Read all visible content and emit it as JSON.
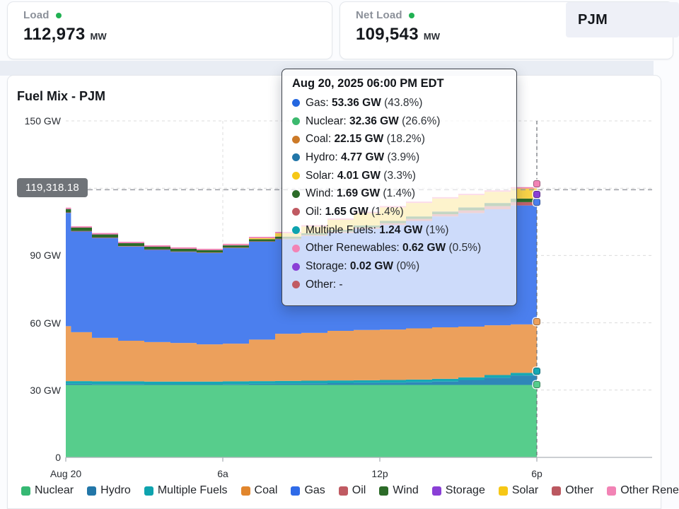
{
  "cards": {
    "load": {
      "title": "Load",
      "value": "112,973",
      "unit": "MW"
    },
    "net_load": {
      "title": "Net Load",
      "value": "109,543",
      "unit": "MW"
    }
  },
  "region_selector": {
    "label": "PJM"
  },
  "chart": {
    "title": "Fuel Mix - PJM",
    "reference_badge": "119,318.18",
    "y_ticks": [
      {
        "label": "150 GW",
        "gw": 150
      },
      {
        "label": "90 GW",
        "gw": 90
      },
      {
        "label": "60 GW",
        "gw": 60
      },
      {
        "label": "30 GW",
        "gw": 30
      },
      {
        "label": "0",
        "gw": 0
      }
    ],
    "hidden_y_tick_gw": 120,
    "x_ticks": [
      {
        "label": "Aug 20",
        "hour": 0
      },
      {
        "label": "6a",
        "hour": 6
      },
      {
        "label": "12p",
        "hour": 12
      },
      {
        "label": "6p",
        "hour": 18
      }
    ],
    "reference_line_gw": 119.318
  },
  "tooltip": {
    "title": "Aug 20, 2025 06:00 PM EDT",
    "rows": [
      {
        "color": "#2467e0",
        "label": "Gas",
        "value": "53.36 GW",
        "pct": "43.8%"
      },
      {
        "color": "#3cb96e",
        "label": "Nuclear",
        "value": "32.36 GW",
        "pct": "26.6%"
      },
      {
        "color": "#cc7a28",
        "label": "Coal",
        "value": "22.15 GW",
        "pct": "18.2%"
      },
      {
        "color": "#2276a8",
        "label": "Hydro",
        "value": "4.77 GW",
        "pct": "3.9%"
      },
      {
        "color": "#f6c716",
        "label": "Solar",
        "value": "4.01 GW",
        "pct": "3.3%"
      },
      {
        "color": "#2c6b28",
        "label": "Wind",
        "value": "1.69 GW",
        "pct": "1.4%"
      },
      {
        "color": "#c05a62",
        "label": "Oil",
        "value": "1.65 GW",
        "pct": "1.4%"
      },
      {
        "color": "#0ea3ae",
        "label": "Multiple Fuels",
        "value": "1.24 GW",
        "pct": "1%"
      },
      {
        "color": "#f283b5",
        "label": "Other Renewables",
        "value": "0.62 GW",
        "pct": "0.5%"
      },
      {
        "color": "#8a3fd6",
        "label": "Storage",
        "value": "0.02 GW",
        "pct": "0%"
      },
      {
        "color": "#c05a62",
        "label": "Other",
        "value": "-",
        "pct": null
      }
    ]
  },
  "legend": {
    "items": [
      {
        "label": "Nuclear",
        "color": "#36b873"
      },
      {
        "label": "Hydro",
        "color": "#2276a8"
      },
      {
        "label": "Multiple Fuels",
        "color": "#0ea3ae"
      },
      {
        "label": "Coal",
        "color": "#e1862d"
      },
      {
        "label": "Gas",
        "color": "#2f6be8"
      },
      {
        "label": "Oil",
        "color": "#c05a62"
      },
      {
        "label": "Wind",
        "color": "#2c6b28"
      },
      {
        "label": "Storage",
        "color": "#8a3fd6"
      },
      {
        "label": "Solar",
        "color": "#f6c716"
      },
      {
        "label": "Other",
        "color": "#bb5860"
      },
      {
        "label": "Other Renewables",
        "color": "#f283b5"
      }
    ]
  },
  "chart_data": {
    "type": "area",
    "stacked": true,
    "step": true,
    "title": "Fuel Mix - PJM",
    "x_unit": "hours on Aug 20, 2025 (EDT)",
    "y_unit": "GW",
    "ylim": [
      0,
      150
    ],
    "xlim_hours": [
      0,
      22.4
    ],
    "grid": true,
    "legend_position": "bottom",
    "hover_hour": 18,
    "x": [
      0,
      0.2,
      1,
      2,
      3,
      4,
      5,
      6,
      7,
      8,
      9,
      10,
      11,
      12,
      13,
      14,
      15,
      16,
      17,
      18
    ],
    "series": [
      {
        "name": "nuclear",
        "label": "Nuclear",
        "color": "#57cd8c",
        "values": [
          32.3,
          32.3,
          32.3,
          32.3,
          32.3,
          32.3,
          32.3,
          32.3,
          32.3,
          32.3,
          32.3,
          32.3,
          32.3,
          32.3,
          32.3,
          32.3,
          32.3,
          32.3,
          32.3,
          32.36
        ]
      },
      {
        "name": "hydro",
        "label": "Hydro",
        "color": "#2f87b8",
        "values": [
          0.5,
          0.5,
          0.4,
          0.4,
          0.3,
          0.3,
          0.3,
          0.4,
          0.5,
          0.6,
          0.7,
          0.8,
          0.9,
          1.0,
          1.2,
          1.5,
          2.2,
          3.2,
          4.2,
          4.77
        ]
      },
      {
        "name": "multiple_fuels",
        "label": "Multiple Fuels",
        "color": "#17a8b4",
        "values": [
          1.2,
          1.2,
          1.2,
          1.2,
          1.2,
          1.2,
          1.2,
          1.2,
          1.2,
          1.2,
          1.2,
          1.2,
          1.2,
          1.2,
          1.2,
          1.2,
          1.2,
          1.2,
          1.2,
          1.24
        ]
      },
      {
        "name": "coal",
        "label": "Coal",
        "color": "#eca05c",
        "values": [
          24.5,
          21.8,
          19.4,
          18.1,
          17.6,
          17.2,
          16.6,
          16.8,
          18.5,
          21.0,
          21.3,
          22.1,
          22.4,
          22.5,
          22.8,
          23.0,
          22.6,
          22.2,
          21.6,
          22.15
        ]
      },
      {
        "name": "gas",
        "label": "Gas",
        "color": "#4b7fee",
        "values": [
          50.5,
          44.9,
          44.5,
          42.0,
          41.1,
          40.6,
          40.7,
          42.6,
          43.6,
          42.1,
          43.2,
          43.7,
          45.1,
          46.6,
          47.9,
          49.4,
          50.6,
          51.7,
          53.0,
          53.36
        ]
      },
      {
        "name": "oil",
        "label": "Oil",
        "color": "#c3636c",
        "values": [
          0.2,
          0.2,
          0.2,
          0.2,
          0.2,
          0.2,
          0.2,
          0.2,
          0.2,
          0.3,
          0.4,
          0.5,
          0.6,
          0.8,
          0.9,
          1.0,
          1.2,
          1.4,
          1.5,
          1.65
        ]
      },
      {
        "name": "wind",
        "label": "Wind",
        "color": "#2c6b28",
        "values": [
          1.5,
          1.5,
          1.4,
          1.3,
          1.2,
          1.2,
          1.1,
          1.0,
          0.9,
          0.9,
          0.8,
          0.8,
          0.9,
          1.0,
          1.1,
          1.2,
          1.3,
          1.4,
          1.55,
          1.69
        ]
      },
      {
        "name": "storage",
        "label": "Storage",
        "color": "#8a3fd6",
        "values": [
          0.02,
          0.02,
          0.02,
          0.02,
          0.02,
          0.02,
          0.02,
          0.02,
          0.02,
          0.02,
          0.02,
          0.02,
          0.02,
          0.02,
          0.02,
          0.02,
          0.02,
          0.02,
          0.02,
          0.02
        ]
      },
      {
        "name": "solar",
        "label": "Solar",
        "color": "#f8d348",
        "values": [
          0,
          0,
          0,
          0,
          0,
          0,
          0,
          0.1,
          0.5,
          1.5,
          3.0,
          4.5,
          5.5,
          6.0,
          6.0,
          5.8,
          5.5,
          5.0,
          4.5,
          4.01
        ]
      },
      {
        "name": "other",
        "label": "Other",
        "color": "#bb5860",
        "values": [
          0,
          0,
          0,
          0,
          0,
          0,
          0,
          0,
          0,
          0,
          0,
          0,
          0,
          0,
          0,
          0,
          0,
          0,
          0,
          0
        ]
      },
      {
        "name": "other_renewables",
        "label": "Other Renewables",
        "color": "#f283b5",
        "values": [
          0.6,
          0.6,
          0.6,
          0.6,
          0.6,
          0.6,
          0.6,
          0.6,
          0.6,
          0.6,
          0.6,
          0.6,
          0.6,
          0.6,
          0.6,
          0.6,
          0.6,
          0.6,
          0.6,
          0.62
        ]
      }
    ],
    "hover_markers": [
      "nuclear",
      "multiple_fuels",
      "coal",
      "gas",
      "storage",
      "other_renewables"
    ]
  }
}
